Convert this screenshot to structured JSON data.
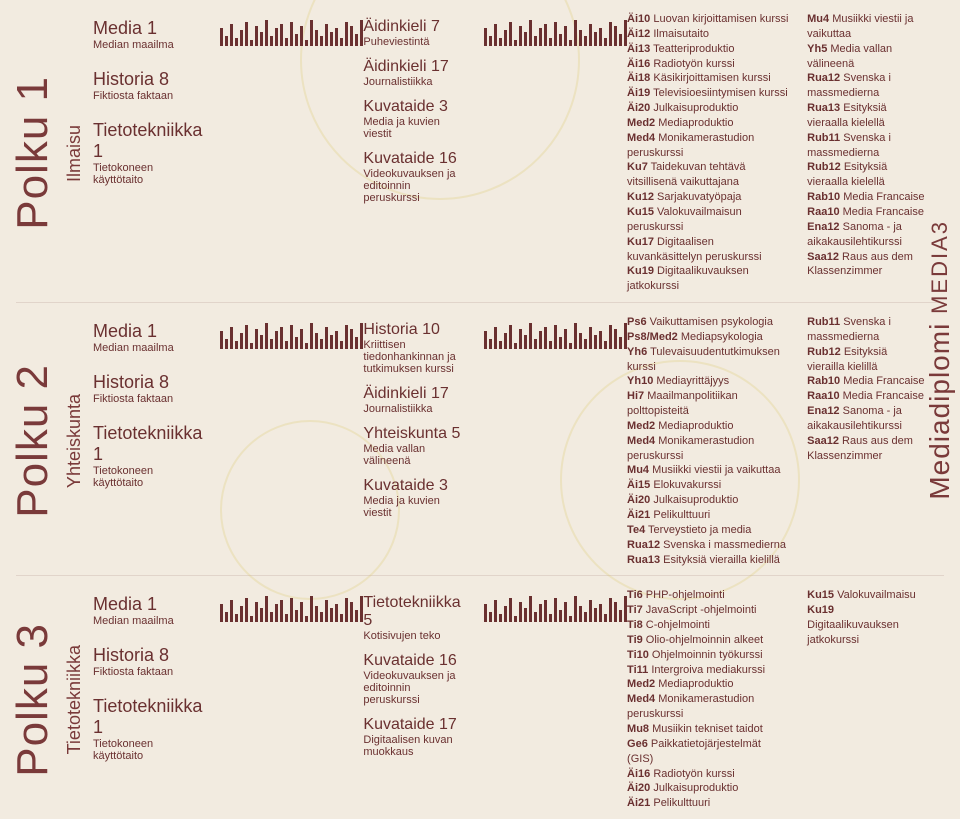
{
  "side_label": "Mediadiplomi",
  "side_tag": "MEDIA3",
  "paths": [
    {
      "title": "Polku 1",
      "subtitle": "Ilmaisu",
      "col1": [
        {
          "h": "Media 1",
          "s": "Median maailma"
        },
        {
          "h": "Historia 8",
          "s": "Fiktiosta faktaan"
        },
        {
          "h": "Tietotekniikka 1",
          "s": "Tietokoneen käyttötaito"
        }
      ],
      "col2": [
        {
          "h": "Äidinkieli 7",
          "s": "Puheviestintä"
        },
        {
          "h": "Äidinkieli 17",
          "s": "Journalistiikka"
        },
        {
          "h": "Kuvataide 3",
          "s": "Media ja kuvien viestit"
        },
        {
          "h": "Kuvataide 16",
          "s": "Videokuvauksen ja editoinnin peruskurssi"
        }
      ],
      "col3": [
        "<b>Äi10</b> Luovan kirjoittamisen kurssi",
        "<b>Äi12</b> Ilmaisutaito",
        "<b>Äi13</b> Teatteriproduktio",
        "<b>Äi16</b> Radiotyön kurssi",
        "<b>Äi18</b> Käsikirjoittamisen kurssi",
        "<b>Äi19</b> Televisioesiintymisen kurssi",
        "<b>Äi20</b> Julkaisuproduktio",
        "<b>Med2</b> Mediaproduktio",
        "<b>Med4</b> Monikamerastudion peruskurssi",
        "<b>Ku7</b> Taidekuvan tehtävä vitsillisenä vaikuttajana",
        "<b>Ku12</b> Sarjakuvatyöpaja",
        "<b>Ku15</b> Valokuvailmaisun peruskurssi",
        "<b>Ku17</b> Digitaalisen kuvankäsittelyn peruskurssi",
        "<b>Ku19</b> Digitaalikuvauksen jatkokurssi"
      ],
      "col4": [
        "<b>Mu4</b> Musiikki viestii ja vaikuttaa",
        "<b>Yh5</b> Media vallan välineenä",
        "<b>Rua12</b> Svenska i massmedierna",
        "<b>Rua13</b> Esityksiä vieraalla kielellä",
        "<b>Rub11</b> Svenska i massmedierna",
        "<b>Rub12</b> Esityksiä vieraalla kielellä",
        "<b>Rab10</b> Media Francaise",
        "<b>Raa10</b> Media Francaise",
        "<b>Ena12</b> Sanoma - ja aikakausilehtikurssi",
        "<b>Saa12</b> Raus aus dem Klassenzimmer"
      ]
    },
    {
      "title": "Polku 2",
      "subtitle": "Yhteiskunta",
      "col1": [
        {
          "h": "Media 1",
          "s": "Median maailma"
        },
        {
          "h": "Historia 8",
          "s": "Fiktiosta faktaan"
        },
        {
          "h": "Tietotekniikka 1",
          "s": "Tietokoneen käyttötaito"
        }
      ],
      "col2": [
        {
          "h": "Historia 10",
          "s": "Kriittisen tiedonhankinnan ja tutkimuksen kurssi"
        },
        {
          "h": "Äidinkieli 17",
          "s": "Journalistiikka"
        },
        {
          "h": "Yhteiskunta 5",
          "s": "Media vallan välineenä"
        },
        {
          "h": "Kuvataide 3",
          "s": "Media ja kuvien viestit"
        }
      ],
      "col3": [
        "<b>Ps6</b> Vaikuttamisen psykologia",
        "<b>Ps8/Med2</b> Mediapsykologia",
        "<b>Yh6</b> Tulevaisuudentutkimuksen kurssi",
        "<b>Yh10</b> Mediayrittäjyys",
        "<b>Hi7</b> Maailmanpolitiikan polttopisteitä",
        "<b>Med2</b> Mediaproduktio",
        "<b>Med4</b> Monikamerastudion peruskurssi",
        "<b>Mu4</b> Musiikki viestii ja vaikuttaa",
        "<b>Äi15</b> Elokuvakurssi",
        "<b>Äi20</b> Julkaisuproduktio",
        "<b>Äi21</b> Pelikulttuuri",
        "<b>Te4</b> Terveystieto ja media",
        "<b>Rua12</b> Svenska i massmedierna",
        "<b>Rua13</b> Esityksiä vierailla kielillä"
      ],
      "col4": [
        "<b>Rub11</b> Svenska i massmedierna",
        "<b>Rub12</b> Esityksiä vierailla kielillä",
        "<b>Rab10</b> Media Francaise",
        "<b>Raa10</b> Media Francaise",
        "<b>Ena12</b> Sanoma - ja aikakausilehtikurssi",
        "<b>Saa12</b> Raus aus dem Klassenzimmer"
      ]
    },
    {
      "title": "Polku 3",
      "subtitle": "Tietotekniikka",
      "col1": [
        {
          "h": "Media 1",
          "s": "Median maailma"
        },
        {
          "h": "Historia 8",
          "s": "Fiktiosta faktaan"
        },
        {
          "h": "Tietotekniikka 1",
          "s": "Tietokoneen käyttötaito"
        }
      ],
      "col2": [
        {
          "h": "Tietotekniikka 5",
          "s": "Kotisivujen teko"
        },
        {
          "h": "Kuvataide 16",
          "s": "Videokuvauksen ja editoinnin peruskurssi"
        },
        {
          "h": "Kuvataide 17",
          "s": "Digitaalisen kuvan muokkaus"
        }
      ],
      "col3": [
        "<b>Ti6</b> PHP-ohjelmointi",
        "<b>Ti7</b> JavaScript -ohjelmointi",
        "<b>Ti8</b> C-ohjelmointi",
        "<b>Ti9</b> Olio-ohjelmoinnin alkeet",
        "<b>Ti10</b> Ohjelmoinnin työkurssi",
        "<b>Ti11</b> Intergroiva mediakurssi",
        "<b>Med2</b> Mediaproduktio",
        "<b>Med4</b> Monikamerastudion peruskurssi",
        "<b>Mu8</b> Musiikin tekniset taidot",
        "<b>Ge6</b> Paikkatietojärjestelmät (GIS)",
        "<b>Äi16</b> Radiotyön kurssi",
        "<b>Äi20</b> Julkaisuproduktio",
        "<b>Äi21</b> Pelikulttuuri"
      ],
      "col4": [
        "<b>Ku15</b> Valokuvailmaisu",
        "<b>Ku19</b> Digitaalikuvauksen jatkokurssi"
      ]
    }
  ],
  "barcode_heights": [
    18,
    10,
    22,
    8,
    16,
    24,
    6,
    20,
    14,
    26,
    10,
    18,
    22,
    8,
    24,
    12,
    20,
    6,
    26,
    16,
    10,
    22,
    14,
    18,
    8,
    24,
    20,
    12,
    26
  ]
}
